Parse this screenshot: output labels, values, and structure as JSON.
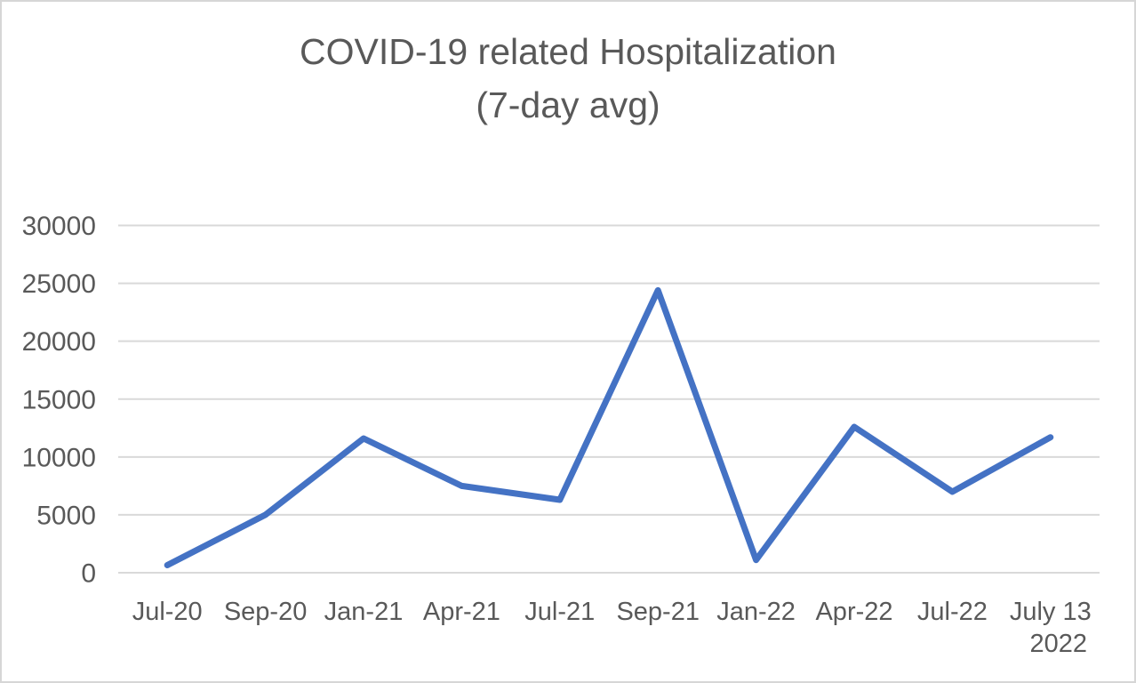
{
  "title": {
    "line1": "COVID-19 related Hospitalization",
    "line2": "(7-day avg)"
  },
  "chart_data": {
    "type": "line",
    "title": "COVID-19 related Hospitalization (7-day avg)",
    "categories": [
      "Jul-20",
      "Sep-20",
      "Jan-21",
      "Apr-21",
      "Jul-21",
      "Sep-21",
      "Jan-22",
      "Apr-22",
      "Jul-22",
      "July 13\n2022"
    ],
    "values": [
      650,
      5000,
      11600,
      7500,
      6300,
      24400,
      1100,
      12600,
      7000,
      11700
    ],
    "series_name": "COVID-19 related hospitalizations, 7-day average",
    "xlabel": "",
    "ylabel": "",
    "ylim": [
      0,
      30000
    ],
    "yticks": [
      0,
      5000,
      10000,
      15000,
      20000,
      25000,
      30000
    ],
    "grid": "horizontal",
    "legend": "none",
    "colors": {
      "line": "#4472C4",
      "gridline": "#d9d9d9",
      "axis_text": "#595959",
      "title_text": "#595959",
      "frame_border": "#d6d6d6",
      "background": "#ffffff"
    },
    "line_width": 7
  }
}
